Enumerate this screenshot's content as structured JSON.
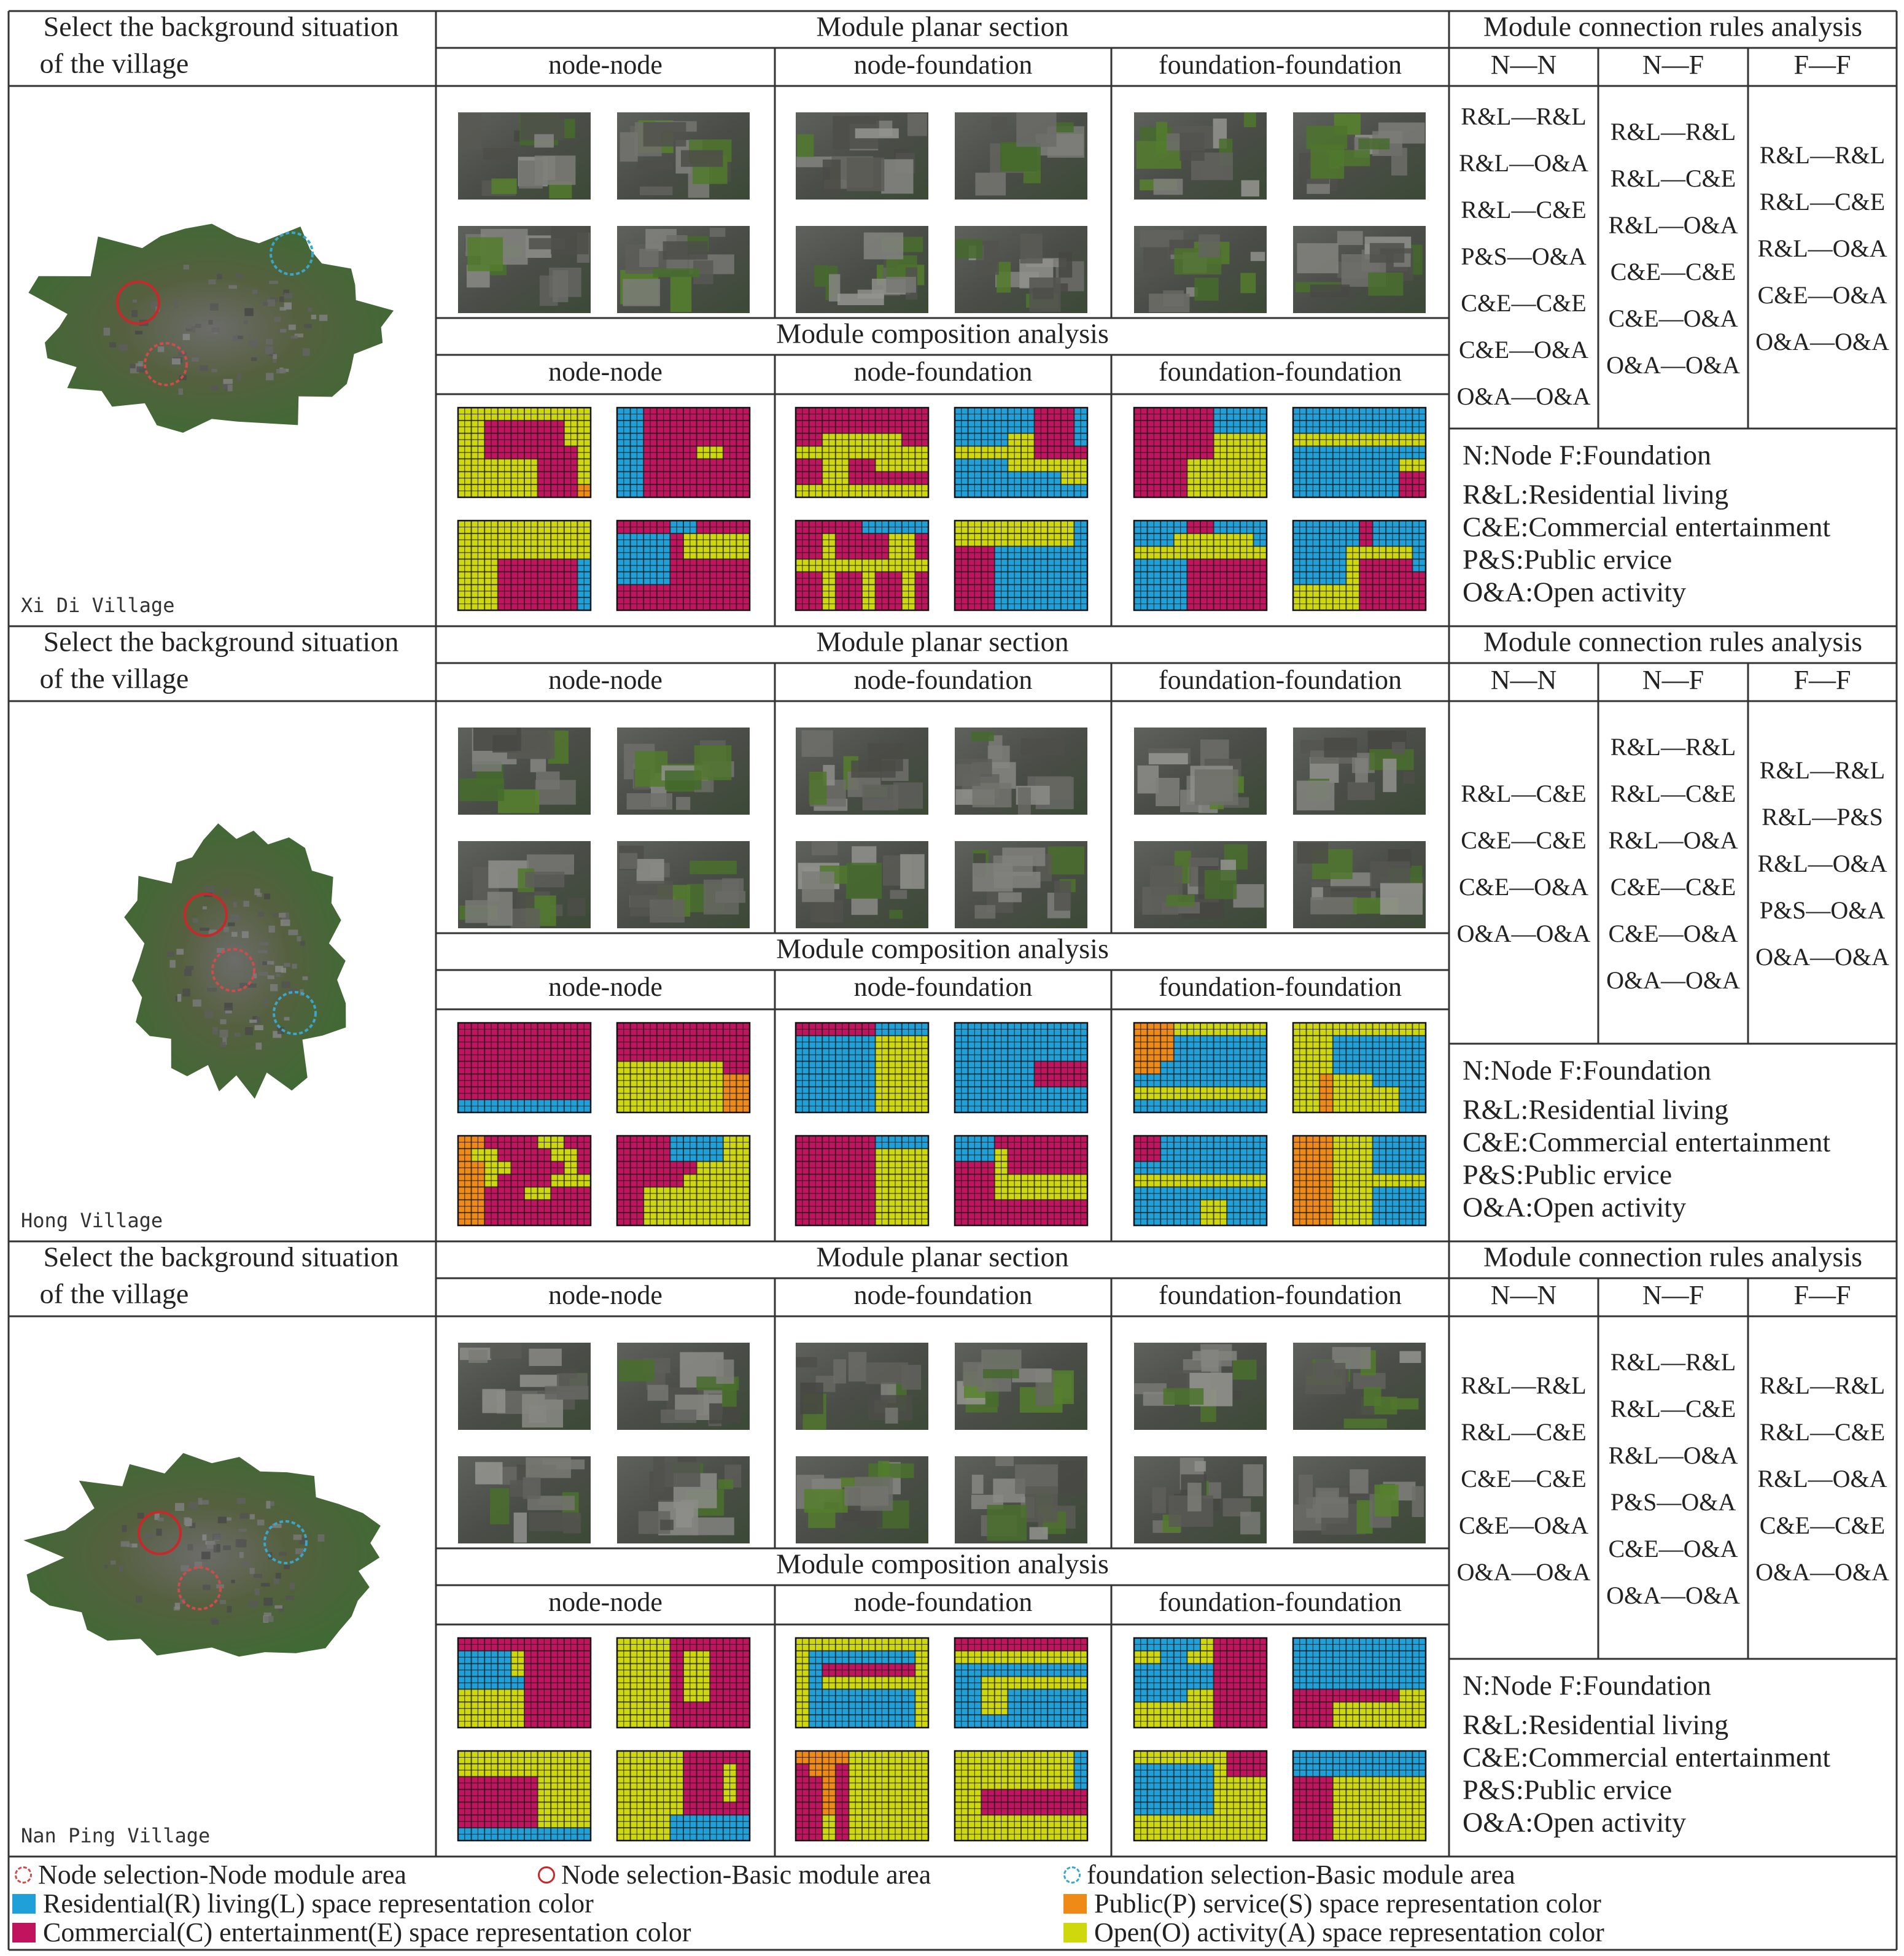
{
  "colors": {
    "residential": "#1fa0d8",
    "commercial": "#c0145e",
    "public": "#ef8a16",
    "open": "#cfd80c",
    "node_node_circle": "#d24a4a",
    "node_basic_circle": "#c8282a",
    "foundation_circle": "#3aa6cc"
  },
  "headers": {
    "select_background": [
      "Select the background situation",
      "of the village"
    ],
    "planar_section": "Module planar section",
    "composition": "Module composition analysis",
    "rules": "Module connection rules analysis",
    "sub_headers": [
      "node-node",
      "node-foundation",
      "foundation-foundation"
    ],
    "rule_cols": [
      "N—N",
      "N—F",
      "F—F"
    ]
  },
  "key": {
    "nf": "N:Node        F:Foundation",
    "lines": [
      "R&L:Residential living",
      "C&E:Commercial entertainment",
      "P&S:Public ervice",
      "O&A:Open activity"
    ]
  },
  "villages": [
    {
      "name": "Xi Di Village",
      "map_icon": "village-aerial-map",
      "rules": {
        "nn": [
          "R&L—R&L",
          "R&L—O&A",
          "R&L—C&E",
          "P&S—O&A",
          "C&E—C&E",
          "C&E—O&A",
          "O&A—O&A"
        ],
        "nf": [
          "R&L—R&L",
          "R&L—C&E",
          "R&L—O&A",
          "C&E—C&E",
          "C&E—O&A",
          "O&A—O&A"
        ],
        "ff": [
          "R&L—R&L",
          "R&L—C&E",
          "R&L—O&A",
          "C&E—O&A",
          "O&A—O&A"
        ]
      },
      "grids": [
        [
          "OOOOOOOOOO",
          "OOOOOOOOOO",
          "OOOOOOOOOO",
          "OOOCCCCCCR",
          "OOOCCCCCCR",
          "OOOCCCCCCR",
          "OOOCCCCCCR"
        ],
        [
          "CCCCRRCCCC",
          "RRRRCOOOOO",
          "RRRRCOOOOO",
          "RRRRCCCCCC",
          "RRRRCCCCCC",
          "CCCCCCCCCC",
          "CCCCCCCCCC"
        ],
        [
          "CCCCCRRRRR",
          "CCOCCCCOOC",
          "CCOCCCCOOC",
          "OOOOOOOOOO",
          "CCOCCOCCOC",
          "CCOCCOCCOC",
          "CCOCCOCCOC"
        ],
        [
          "OOOOOOOOOR",
          "OOOOOOOOOR",
          "CCCRRRRRRR",
          "CCCRRRRRRR",
          "CCCRRRRRRR",
          "CCCRRRRRRR",
          "CCCRRRRRRR"
        ],
        [
          "RRRRCCRRRR",
          "RRROOOOOOR",
          "OOOOOOOOOO",
          "RRRRCCCCCC",
          "RRRRCCCCCC",
          "RRRRCCCCCC",
          "RRRRCCCCCC"
        ],
        [
          "RRRRRCRRRR",
          "RRRRRCRRRR",
          "RRRROOOOOR",
          "RRRROCCCCR",
          "RRRROCCCCC",
          "OOOOOCCCCC",
          "OOOOOCCCCC"
        ]
      ],
      "grids2": [
        [
          "OOOOOOOOOO",
          "OOCCCCCCOO",
          "OOCCCCCCOO",
          "OOCCCCCCCO",
          "OOOOOOCCCO",
          "OOOOOOCCCO",
          "OOOOOOCCCP"
        ],
        [
          "RRCCCCCCCC",
          "RRCCCCCCCC",
          "RRCCCCCCCC",
          "RRCCCCOOCC",
          "RRCCCCCCCC",
          "RRCCCCCCCC",
          "RRCCCCCCCC"
        ],
        [
          "CCCCCCCCCC",
          "CCCCCCCCCC",
          "CCOOOOOOCC",
          "OOOOOOOOOO",
          "CCOOCCOOOO",
          "CCOOCCCCCC",
          "OOOOOOOOOO"
        ],
        [
          "RRRRRRCCCR",
          "RRRRRRCCCR",
          "RRRROOCCCR",
          "OOOOOOCCCC",
          "RRRROOOOOO",
          "RRRRRRRROO",
          "RRRRRRRRRR"
        ],
        [
          "CCCCCCRRRR",
          "CCCCCCRRRR",
          "CCCCCCOOOO",
          "CCCCCCOOOO",
          "CCCCOOOOOO",
          "CCCCOOOOOO",
          "CCCCOOOOOO"
        ],
        [
          "RRRRRRRRRR",
          "RRRRRRRRRR",
          "OOOOOOOOOO",
          "RRRRRRRRRR",
          "RRRRRRRROO",
          "RRRRRRRRCC",
          "RRRRRRRRCC"
        ]
      ]
    },
    {
      "name": "Hong Village",
      "map_icon": "village-aerial-map",
      "rules": {
        "nn": [
          "R&L—C&E",
          "C&E—C&E",
          "C&E—O&A",
          "O&A—O&A"
        ],
        "nf": [
          "R&L—R&L",
          "R&L—C&E",
          "R&L—O&A",
          "C&E—C&E",
          "C&E—O&A",
          "O&A—O&A"
        ],
        "ff": [
          "R&L—R&L",
          "R&L—P&S",
          "R&L—O&A",
          "P&S—O&A",
          "O&A—O&A"
        ]
      },
      "grids": [
        [
          "PPCCCCOOCC",
          "POOCCCCOOC",
          "PPOOCCCCOC",
          "PPOCCCCOOO",
          "PPCCCOOCCC",
          "PPCCCCCCCC",
          "PPCCCCCCCC"
        ],
        [
          "CCCCRRRROO",
          "CCCCRRRROO",
          "CCCCCCOOOO",
          "CCCCCOOOOO",
          "CCOOOOOOOO",
          "CCOOOOOOOO",
          "CCOOOOOOOO"
        ],
        [
          "CCCCCCRRRR",
          "CCCCCCOOOO",
          "CCCCCCOOOO",
          "CCCCCCOOOO",
          "CCCCCCOOOO",
          "CCCCCCOOOO",
          "CCCCCCOOOO"
        ],
        [
          "RRRCCCCCCC",
          "RRROCCCCCC",
          "CCCOCCCCCC",
          "CCCOOOOOOO",
          "CCCOOOOOOO",
          "CCCCCCCCCC",
          "CCCCCCCCCC"
        ],
        [
          "CCRRRRRRRR",
          "CCRRRRRRRR",
          "RRRRRRRRRR",
          "OOOOOOOOOO",
          "RRRRRRRRRR",
          "RRRRROORRR",
          "RRRRROORRR"
        ],
        [
          "PPPOOORRRR",
          "PPPOOORRRR",
          "PPPOOORRRR",
          "PPPOOOOOOO",
          "PPPOOORRRR",
          "PPPOOORRRR",
          "PPPOOORRRR"
        ]
      ],
      "grids2": [
        [
          "CCCCCCCCCC",
          "CCCCCCCCCC",
          "CCCCCCCCCC",
          "CCCCCCCCCC",
          "CCCCCCCCCC",
          "CCCCCCCCCC",
          "RRRRRRRRRR"
        ],
        [
          "CCCCCCCCCC",
          "CCCCCCCCCC",
          "CCCCCCCCCC",
          "OOOOOOOOCC",
          "OOOOOOOOPP",
          "OOOOOOOOPP",
          "OOOOOOOOPP"
        ],
        [
          "CCCCCCRRRR",
          "RRRRRROOOO",
          "RRRRRROOOO",
          "RRRRRROOOO",
          "RRRRRROOOO",
          "RRRRRROOOO",
          "RRRRRROOOO"
        ],
        [
          "RRRRRRRRRR",
          "RRRRRRRRRR",
          "RRRRRRRRRR",
          "RRRRRRCCCC",
          "RRRRRRCCCC",
          "RRRRRRRRRR",
          "RRRRRRRRRR"
        ],
        [
          "PPPOOOOOOO",
          "PPPRRRRRRR",
          "PPPRRRRRRR",
          "PPRRRRRRRR",
          "RRRRRRRRRR",
          "OOOOOOOOOO",
          "RRRRRRRRRR"
        ],
        [
          "OOOOOOOOOO",
          "OOORRRRRRR",
          "OOORRRRRRR",
          "OOORRRRRRR",
          "OOPOOORRRR",
          "OOPOOOOORR",
          "OOPOOOOORR"
        ]
      ]
    },
    {
      "name": "Nan Ping Village",
      "map_icon": "village-aerial-map",
      "rules": {
        "nn": [
          "R&L—R&L",
          "R&L—C&E",
          "C&E—C&E",
          "C&E—O&A",
          "O&A—O&A"
        ],
        "nf": [
          "R&L—R&L",
          "R&L—C&E",
          "R&L—O&A",
          "P&S—O&A",
          "C&E—O&A",
          "O&A—O&A"
        ],
        "ff": [
          "R&L—R&L",
          "R&L—C&E",
          "R&L—O&A",
          "C&E—C&E",
          "O&A—O&A"
        ]
      },
      "grids": [
        [
          "OOOOOOOOOO",
          "OOOOOOOOOO",
          "CCCCCCOOOO",
          "CCCCCCOOOO",
          "CCCCCCOOOO",
          "CCCCCCOOOO",
          "RRRRRRRRRR"
        ],
        [
          "OOOOOCCCCC",
          "OOOOOCCCOC",
          "OOOOOCCCOC",
          "OOOOOCCCOC",
          "OOOOOCCCCC",
          "OOOORRRRRR",
          "OOOORRRRRR"
        ],
        [
          "PPPPOOOOOO",
          "CPPCOOOOOO",
          "CCPCOOOOOO",
          "CCPCOOOOOO",
          "CCPCOOOOOO",
          "CCOCOOOOOO",
          "CCOCOOOOOO"
        ],
        [
          "OOOOOOOOOR",
          "OOOOOOOOOR",
          "OOOOOOOOOR",
          "OOCCCCCCCC",
          "OOCCCCCCCC",
          "OOOOOOOOOO",
          "OOOOOOOOOO"
        ],
        [
          "OOOOOOOCCC",
          "RRRRRROCCC",
          "RRRRRROOOO",
          "RRRRRROOOO",
          "RRRRRROOOO",
          "OOOOOOOOOO",
          "OOOOOOOOOO"
        ],
        [
          "RRRRRRRRRR",
          "RRRRRRRRRR",
          "CCCOOOOOOO",
          "CCCOOOOOOO",
          "CCCOOOOOOO",
          "CCCOOOOOOO",
          "CCCOOOOOOO"
        ]
      ],
      "grids2": [
        [
          "CCCCCCCCCC",
          "RRRROCCCCC",
          "RRRROCCCCC",
          "RRRRRCCCCC",
          "OOOOOCCCCC",
          "OOOOOCCCCC",
          "OOOOOCCCCC"
        ],
        [
          "OOOOCCCCCC",
          "OOOOCOOCCC",
          "OOOOCOOCCC",
          "OOOOCOOCCC",
          "OOOOCOOCCC",
          "OOOOCCCCCC",
          "OOOOCCCCCC"
        ],
        [
          "OOOOOOOOOO",
          "ORRRRRRRRO",
          "ORCCCCCCCO",
          "OROOOOOOOO",
          "ORRRRRRRRO",
          "ORRRRRRRRO",
          "ORRRRRRRRO"
        ],
        [
          "CCCCCCCCCC",
          "OOOOOOOOOO",
          "RRRRRRRRRR",
          "RROOOOOOOO",
          "RROORRRRRR",
          "RROORRRRRR",
          "RRRRRRRRRR"
        ],
        [
          "RRRRROCCCC",
          "OORROOCCCC",
          "RRRRRRCCCC",
          "RRRRRRCCCC",
          "RRRROOCCCC",
          "OOOOOOCCCC",
          "OOOOOOCCCC"
        ],
        [
          "RRRRRRRRRR",
          "RRRRRRRRRR",
          "RRRRRRRRRR",
          "RRRRRRRRRR",
          "CCCCCCCCOO",
          "CCCOOOOOOO",
          "CCCOOOOOOO"
        ]
      ]
    }
  ],
  "legend": {
    "node_node": "Node selection-Node module area",
    "node_basic": "Node selection-Basic module area",
    "foundation": "foundation selection-Basic module area",
    "residential": "Residential(R) living(L) space representation color",
    "public": "Public(P) service(S) space representation color",
    "commercial": "Commercial(C) entertainment(E) space representation color",
    "open": "Open(O) activity(A) space representation color"
  }
}
